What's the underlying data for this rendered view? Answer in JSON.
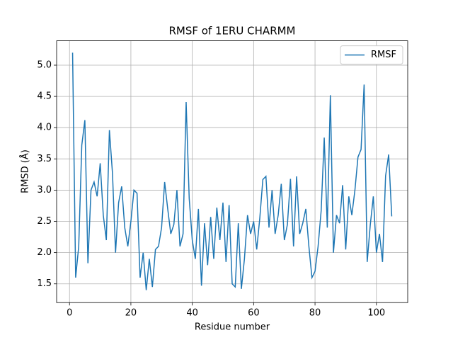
{
  "chart_data": {
    "type": "line",
    "title": "RMSF of 1ERU CHARMM",
    "xlabel": "Residue number",
    "ylabel": "RMSD (Å)",
    "x": [
      1,
      2,
      3,
      4,
      5,
      6,
      7,
      8,
      9,
      10,
      11,
      12,
      13,
      14,
      15,
      16,
      17,
      18,
      19,
      20,
      21,
      22,
      23,
      24,
      25,
      26,
      27,
      28,
      29,
      30,
      31,
      32,
      33,
      34,
      35,
      36,
      37,
      38,
      39,
      40,
      41,
      42,
      43,
      44,
      45,
      46,
      47,
      48,
      49,
      50,
      51,
      52,
      53,
      54,
      55,
      56,
      57,
      58,
      59,
      60,
      61,
      62,
      63,
      64,
      65,
      66,
      67,
      68,
      69,
      70,
      71,
      72,
      73,
      74,
      75,
      76,
      77,
      78,
      79,
      80,
      81,
      82,
      83,
      84,
      85,
      86,
      87,
      88,
      89,
      90,
      91,
      92,
      93,
      94,
      95,
      96,
      97,
      98,
      99,
      100,
      101,
      102,
      103,
      104,
      105
    ],
    "series": [
      {
        "name": "RMSF",
        "color": "#1f77b4",
        "values": [
          5.2,
          1.6,
          2.1,
          3.72,
          4.12,
          1.83,
          3.0,
          3.13,
          2.9,
          3.43,
          2.6,
          2.2,
          3.96,
          3.27,
          2.0,
          2.8,
          3.06,
          2.4,
          2.1,
          2.5,
          3.0,
          2.95,
          1.6,
          2.0,
          1.4,
          1.9,
          1.45,
          2.05,
          2.1,
          2.4,
          3.13,
          2.7,
          2.3,
          2.45,
          3.0,
          2.1,
          2.3,
          4.41,
          2.87,
          2.2,
          1.9,
          2.7,
          1.47,
          2.47,
          1.8,
          2.57,
          1.9,
          2.72,
          2.2,
          2.8,
          1.85,
          2.76,
          1.5,
          1.45,
          2.47,
          1.42,
          1.9,
          2.6,
          2.3,
          2.5,
          2.05,
          2.55,
          3.17,
          3.22,
          2.4,
          3.0,
          2.3,
          2.6,
          3.1,
          2.2,
          2.45,
          3.18,
          2.1,
          3.22,
          2.3,
          2.47,
          2.7,
          2.1,
          1.6,
          1.7,
          2.1,
          2.67,
          3.84,
          2.4,
          4.52,
          2.0,
          2.6,
          2.47,
          3.08,
          2.05,
          2.9,
          2.6,
          3.0,
          3.53,
          3.65,
          4.69,
          1.85,
          2.44,
          2.9,
          2.0,
          2.3,
          1.85,
          3.23,
          3.57,
          2.58
        ]
      }
    ],
    "xlim": [
      -4.2,
      110.2
    ],
    "ylim": [
      1.2,
      5.39
    ],
    "xticks": [
      0,
      20,
      40,
      60,
      80,
      100
    ],
    "yticks": [
      1.5,
      {
        "value": 2.0,
        "label": "2.0"
      },
      2.5,
      {
        "value": 3.0,
        "label": "3.0"
      },
      3.5,
      {
        "value": 4.0,
        "label": "4.0"
      },
      4.5,
      {
        "value": 5.0,
        "label": "5.0"
      }
    ],
    "grid": true,
    "legend": "upper right"
  }
}
